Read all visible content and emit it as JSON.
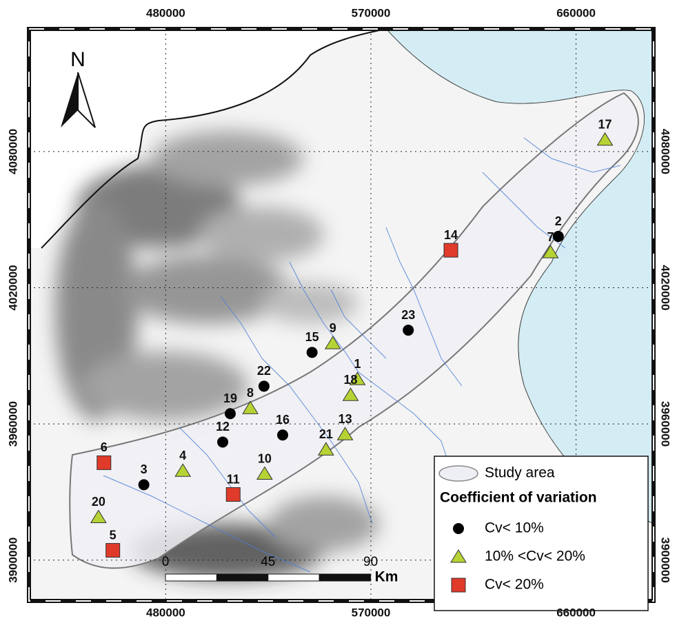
{
  "map": {
    "xlim": [
      420000,
      694000
    ],
    "ylim": [
      3882000,
      4134000
    ],
    "xticks": [
      480000,
      570000,
      660000
    ],
    "yticks": [
      3900000,
      3960000,
      4020000,
      4080000
    ],
    "north": "N",
    "scale": {
      "ticks": [
        0,
        45,
        90
      ],
      "unit": "Km"
    },
    "legend": {
      "study_area": "Study area",
      "title": "Coefficient of variation",
      "classes": [
        {
          "label": "Cv< 10%",
          "shape": "circle",
          "color": "#000000"
        },
        {
          "label": "10% <Cv< 20%",
          "shape": "triangle",
          "color": "#b5d334"
        },
        {
          "label": "Cv< 20%",
          "shape": "square",
          "color": "#e03a2a"
        }
      ]
    },
    "stations": [
      {
        "id": "1",
        "x": 564100,
        "y": 3979700,
        "class": 1
      },
      {
        "id": "2",
        "x": 652200,
        "y": 4042600,
        "class": 0
      },
      {
        "id": "3",
        "x": 470400,
        "y": 3933200,
        "class": 0
      },
      {
        "id": "4",
        "x": 487500,
        "y": 3939300,
        "class": 1
      },
      {
        "id": "5",
        "x": 456800,
        "y": 3904300,
        "class": 2
      },
      {
        "id": "6",
        "x": 452900,
        "y": 3942900,
        "class": 2
      },
      {
        "id": "7",
        "x": 648800,
        "y": 4035600,
        "class": 1
      },
      {
        "id": "8",
        "x": 517100,
        "y": 3966900,
        "class": 1
      },
      {
        "id": "9",
        "x": 553300,
        "y": 3995500,
        "class": 1
      },
      {
        "id": "10",
        "x": 523400,
        "y": 3938000,
        "class": 1
      },
      {
        "id": "11",
        "x": 509600,
        "y": 3928900,
        "class": 2
      },
      {
        "id": "12",
        "x": 505000,
        "y": 3952000,
        "class": 0
      },
      {
        "id": "13",
        "x": 558700,
        "y": 3955400,
        "class": 1
      },
      {
        "id": "14",
        "x": 605100,
        "y": 4036500,
        "class": 2
      },
      {
        "id": "15",
        "x": 544200,
        "y": 3991500,
        "class": 0
      },
      {
        "id": "16",
        "x": 531300,
        "y": 3955100,
        "class": 0
      },
      {
        "id": "17",
        "x": 672700,
        "y": 4085200,
        "class": 1
      },
      {
        "id": "18",
        "x": 561100,
        "y": 3972700,
        "class": 1
      },
      {
        "id": "19",
        "x": 508300,
        "y": 3964500,
        "class": 0
      },
      {
        "id": "20",
        "x": 450500,
        "y": 3918900,
        "class": 1
      },
      {
        "id": "21",
        "x": 550300,
        "y": 3948700,
        "class": 1
      },
      {
        "id": "22",
        "x": 523100,
        "y": 3976600,
        "class": 0
      },
      {
        "id": "23",
        "x": 586400,
        "y": 4001300,
        "class": 0
      }
    ]
  }
}
